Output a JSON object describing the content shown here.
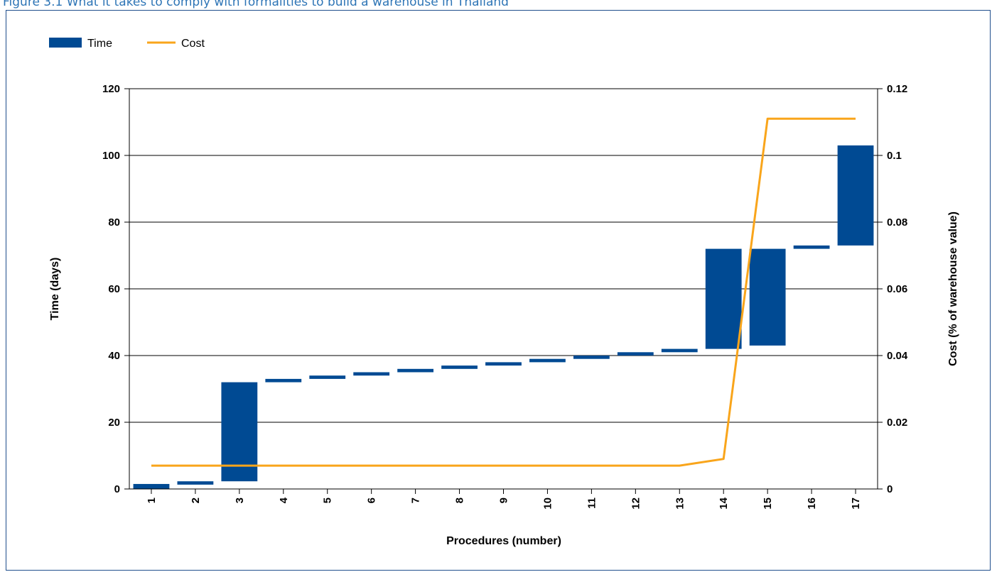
{
  "figure_title": "Figure 3.1 What it takes to comply with formalities to build a warehouse in Thailand",
  "colors": {
    "time": "#004a93",
    "cost": "#f9a51b",
    "title": "#2e75b6",
    "frame": "#1f4e8c"
  },
  "chart_data": {
    "type": "bar",
    "title": "",
    "legend": {
      "placement": "top-left",
      "entries": [
        "Time",
        "Cost"
      ]
    },
    "xlabel": "Procedures (number)",
    "ylabel": "Time (days)",
    "y2label": "Cost (% of warehouse value)",
    "ylim": [
      0,
      120
    ],
    "y2lim": [
      0,
      0.12
    ],
    "yticks": [
      "0",
      "20",
      "40",
      "60",
      "80",
      "100",
      "120"
    ],
    "y2ticks": [
      "0",
      "0.02",
      "0.04",
      "0.06",
      "0.08",
      "0.1",
      "0.12"
    ],
    "grid": true,
    "categories": [
      "1",
      "2",
      "3",
      "4",
      "5",
      "6",
      "7",
      "8",
      "9",
      "10",
      "11",
      "12",
      "13",
      "14",
      "15",
      "16",
      "17"
    ],
    "series": [
      {
        "name": "Time",
        "type": "floating-bar",
        "axis": "left",
        "ranges": [
          [
            0,
            1.5
          ],
          [
            1.3,
            2.3
          ],
          [
            2.3,
            32
          ],
          [
            32,
            33
          ],
          [
            33,
            34
          ],
          [
            34,
            35
          ],
          [
            35,
            36
          ],
          [
            36,
            37
          ],
          [
            37,
            38
          ],
          [
            38,
            39
          ],
          [
            39,
            40
          ],
          [
            40,
            41
          ],
          [
            41,
            42
          ],
          [
            42,
            72
          ],
          [
            43,
            72
          ],
          [
            72,
            73
          ],
          [
            73,
            103
          ]
        ]
      },
      {
        "name": "Cost",
        "type": "line",
        "axis": "right",
        "values": [
          0.007,
          0.007,
          0.007,
          0.007,
          0.007,
          0.007,
          0.007,
          0.007,
          0.007,
          0.007,
          0.007,
          0.007,
          0.007,
          0.009,
          0.111,
          0.111,
          0.111
        ]
      }
    ]
  }
}
